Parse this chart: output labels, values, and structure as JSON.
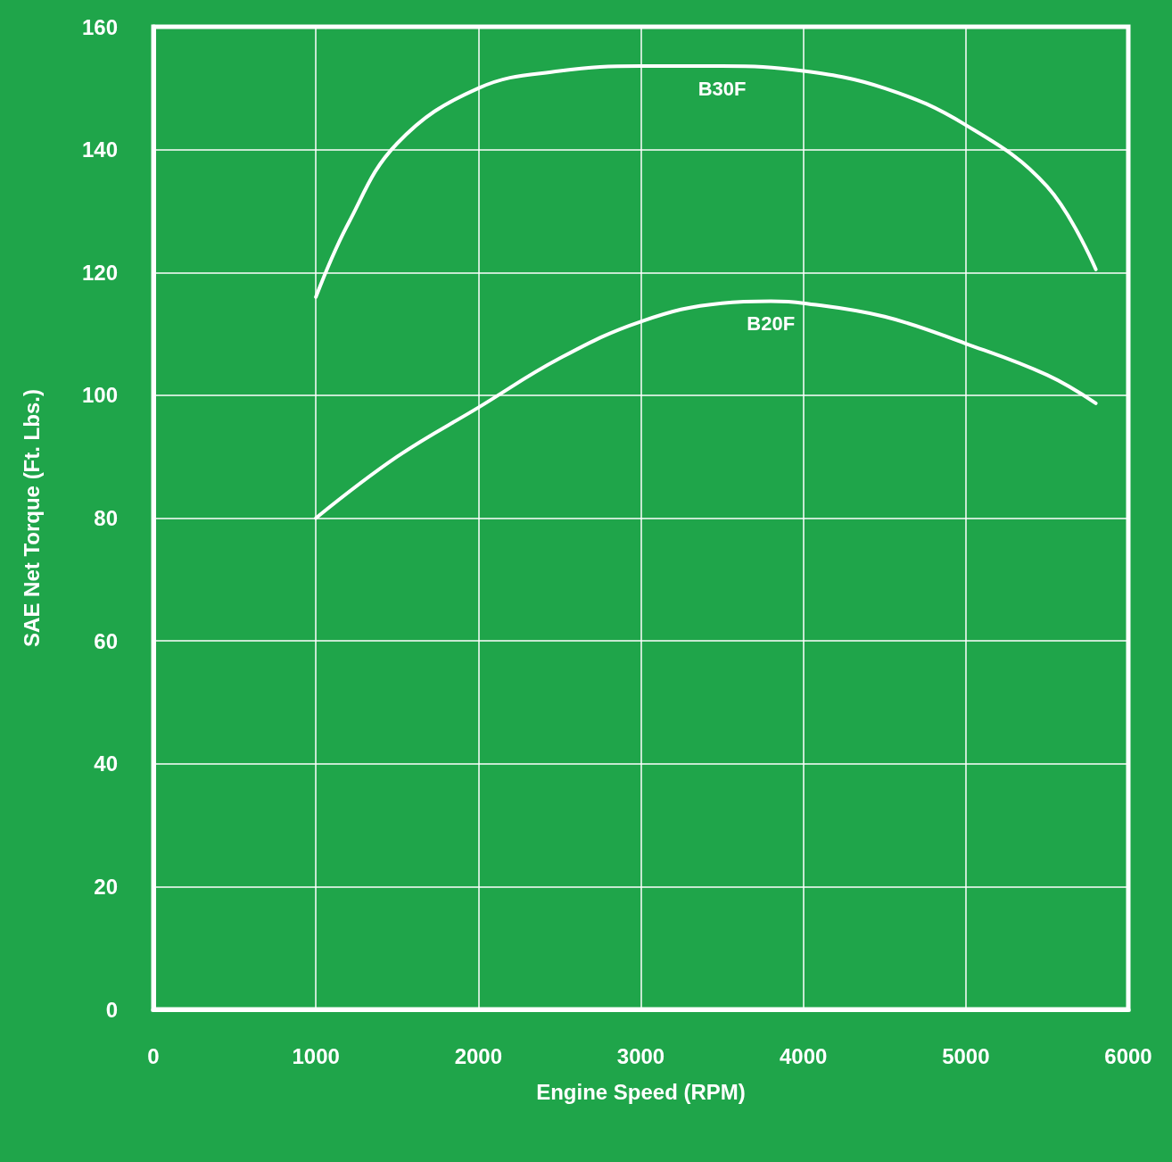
{
  "chart_data": {
    "type": "line",
    "xlabel": "Engine Speed (RPM)",
    "ylabel": "SAE Net Torque (Ft. Lbs.)",
    "xlim": [
      0,
      6000
    ],
    "xticks": [
      0,
      1000,
      2000,
      3000,
      4000,
      5000,
      6000
    ],
    "ylim": [
      0,
      160
    ],
    "yticks": [
      0,
      20,
      40,
      60,
      80,
      100,
      120,
      140,
      160
    ],
    "grid": true,
    "legend": false,
    "marker": "none",
    "line_style": "solid",
    "series": [
      {
        "name": "B30F",
        "color": "#ffffff",
        "x": [
          1000,
          1200,
          1500,
          2000,
          2500,
          3000,
          3500,
          4000,
          4500,
          5000,
          5500,
          5800
        ],
        "values": [
          116,
          128,
          141,
          150,
          152.8,
          153.6,
          153.6,
          152.8,
          150,
          144,
          134,
          120.5
        ]
      },
      {
        "name": "B20F",
        "color": "#ffffff",
        "x": [
          1000,
          1500,
          2000,
          2500,
          3000,
          3500,
          3800,
          4000,
          4500,
          5000,
          5500,
          5800
        ],
        "values": [
          80,
          90,
          98,
          106,
          112,
          115,
          115.3,
          115,
          112.8,
          108.4,
          103.3,
          98.7
        ]
      }
    ]
  }
}
